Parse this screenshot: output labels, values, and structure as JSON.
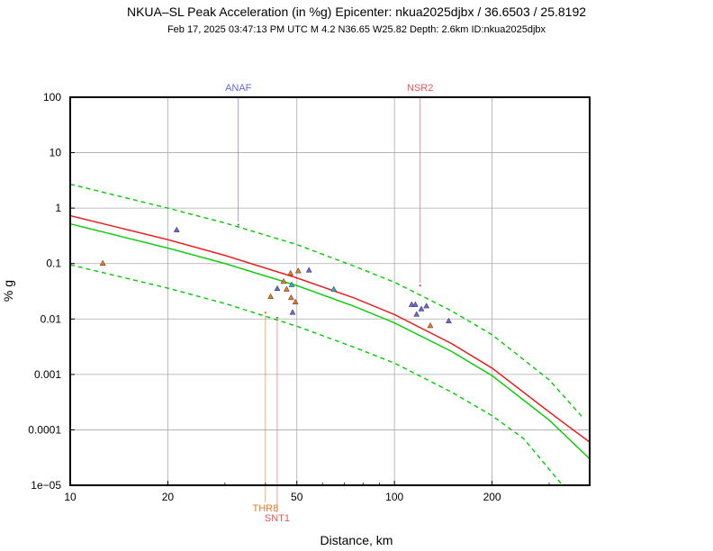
{
  "chart_data": {
    "type": "scatter",
    "title": "NKUA–SL Peak Acceleration (in %g) Epicenter: nkua2025djbx / 36.6503 / 25.8192",
    "subtitle": "Feb 17, 2025 03:47:13 PM UTC   M 4.2   N36.65 W25.82   Depth: 2.6km   ID:nkua2025djbx",
    "xlabel": "Distance, km",
    "ylabel": "% g",
    "xscale": "log",
    "yscale": "log",
    "xlim": [
      10,
      400
    ],
    "ylim": [
      1e-05,
      100
    ],
    "grid": true,
    "x_tick_labels": [
      "10",
      "20",
      "50",
      "100",
      "200"
    ],
    "x_tick_values": [
      10,
      20,
      50,
      100,
      200
    ],
    "y_tick_labels": [
      "100",
      "10",
      "1",
      "0.1",
      "0.01",
      "0.001",
      "0.0001",
      "1e−05"
    ],
    "y_tick_values": [
      100,
      10,
      1,
      0.1,
      0.01,
      0.001,
      0.0001,
      1e-05
    ],
    "curves": [
      {
        "role": "prediction",
        "color": "#00cc00",
        "dash": false,
        "x": [
          10,
          20,
          30,
          50,
          75,
          100,
          150,
          200,
          300,
          400
        ],
        "y": [
          0.52,
          0.19,
          0.1,
          0.04,
          0.017,
          0.0085,
          0.0026,
          0.00095,
          0.00015,
          3e-05
        ]
      },
      {
        "role": "prediction-upper",
        "color": "#00cc00",
        "dash": true,
        "x": [
          10,
          20,
          30,
          50,
          75,
          100,
          150,
          200,
          300,
          380
        ],
        "y": [
          2.7,
          1.0,
          0.54,
          0.22,
          0.09,
          0.046,
          0.014,
          0.0052,
          0.0008,
          0.00017
        ]
      },
      {
        "role": "prediction-lower",
        "color": "#00cc00",
        "dash": true,
        "x": [
          10,
          20,
          30,
          50,
          75,
          100,
          150,
          200,
          250,
          330
        ],
        "y": [
          0.095,
          0.036,
          0.019,
          0.0074,
          0.0031,
          0.0016,
          0.00048,
          0.00018,
          7e-05,
          1e-05
        ]
      },
      {
        "role": "bias-corrected",
        "color": "#ee1111",
        "dash": false,
        "x": [
          10,
          20,
          30,
          50,
          75,
          100,
          150,
          200,
          300,
          400
        ],
        "y": [
          0.73,
          0.27,
          0.14,
          0.055,
          0.024,
          0.012,
          0.0036,
          0.0013,
          0.00021,
          6e-05
        ]
      }
    ],
    "stations": [
      {
        "x": 12.6,
        "y": 0.1,
        "color": "#ee7722"
      },
      {
        "x": 21.3,
        "y": 0.4,
        "color": "#6666dd"
      },
      {
        "x": 41.5,
        "y": 0.025,
        "color": "#ee7722"
      },
      {
        "x": 43.5,
        "y": 0.035,
        "color": "#6666dd"
      },
      {
        "x": 45.5,
        "y": 0.047,
        "color": "#ee7722"
      },
      {
        "x": 46.5,
        "y": 0.034,
        "color": "#ee7722"
      },
      {
        "x": 47.8,
        "y": 0.066,
        "color": "#ee7722"
      },
      {
        "x": 48.2,
        "y": 0.041,
        "color": "#33aacc"
      },
      {
        "x": 48.0,
        "y": 0.024,
        "color": "#ee7722"
      },
      {
        "x": 48.5,
        "y": 0.013,
        "color": "#6666dd"
      },
      {
        "x": 49.5,
        "y": 0.02,
        "color": "#ee7722"
      },
      {
        "x": 50.5,
        "y": 0.073,
        "color": "#ee7722"
      },
      {
        "x": 54.5,
        "y": 0.075,
        "color": "#6666dd"
      },
      {
        "x": 65.0,
        "y": 0.034,
        "color": "#33aacc"
      },
      {
        "x": 113.0,
        "y": 0.018,
        "color": "#6666dd"
      },
      {
        "x": 116.0,
        "y": 0.018,
        "color": "#6666dd"
      },
      {
        "x": 117.0,
        "y": 0.012,
        "color": "#6666dd"
      },
      {
        "x": 121.0,
        "y": 0.015,
        "color": "#6666dd"
      },
      {
        "x": 125.5,
        "y": 0.017,
        "color": "#6666dd"
      },
      {
        "x": 129.0,
        "y": 0.0075,
        "color": "#ee7722"
      },
      {
        "x": 147.0,
        "y": 0.0091,
        "color": "#6666dd"
      }
    ],
    "labeled_stations": [
      {
        "label": "ANAF",
        "x": 33,
        "y": 0.5,
        "color": "#6666dd",
        "label_position": "top"
      },
      {
        "label": "NSR2",
        "x": 120,
        "y": 0.04,
        "color": "#ee5555",
        "label_position": "top"
      },
      {
        "label": "THR8",
        "x": 40,
        "y": 0.013,
        "color": "#ee7722",
        "label_position": "bottom"
      },
      {
        "label": "SNT1",
        "x": 43.5,
        "y": 0.0105,
        "color": "#ee5555",
        "label_position": "bottom"
      }
    ]
  }
}
